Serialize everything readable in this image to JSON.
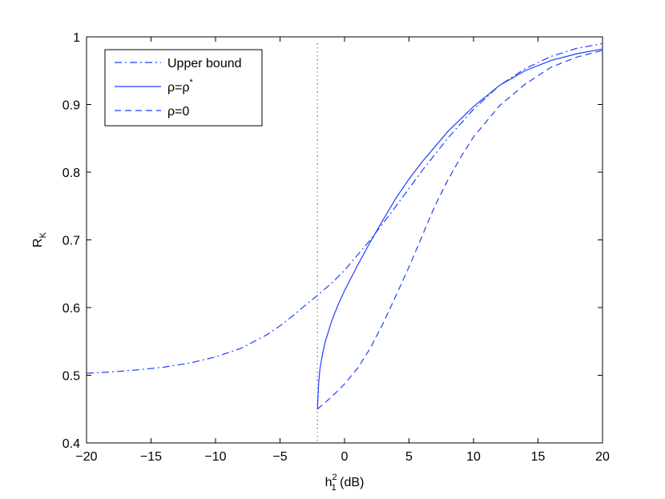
{
  "chart_data": {
    "type": "line",
    "xlabel": "h",
    "xlabel_sup": "2",
    "xlabel_sub": "1",
    "xlabel_suffix": " (dB)",
    "ylabel": "R",
    "ylabel_sub": "K",
    "xlim": [
      -20,
      20
    ],
    "ylim": [
      0.4,
      1.0
    ],
    "xticks": [
      -20,
      -15,
      -10,
      -5,
      0,
      5,
      10,
      15,
      20
    ],
    "xtick_labels": [
      "−20",
      "−15",
      "−10",
      "−5",
      "0",
      "5",
      "10",
      "15",
      "20"
    ],
    "yticks": [
      0.4,
      0.5,
      0.6,
      0.7,
      0.8,
      0.9,
      1.0
    ],
    "ytick_labels": [
      "0.4",
      "0.5",
      "0.6",
      "0.7",
      "0.8",
      "0.9",
      "1"
    ],
    "grid": false,
    "legend_position": "top-left",
    "vline": {
      "x": -2.1
    },
    "series": [
      {
        "name": "Upper bound",
        "style": "dashdot",
        "color": "#1f3fff",
        "x": [
          -20,
          -18,
          -16,
          -14,
          -12,
          -10,
          -8,
          -6,
          -5,
          -4,
          -3,
          -2.1,
          -1,
          0,
          2,
          4,
          6,
          8,
          10,
          12,
          14,
          16,
          18,
          20
        ],
        "y": [
          0.503,
          0.505,
          0.508,
          0.512,
          0.518,
          0.527,
          0.54,
          0.56,
          0.573,
          0.588,
          0.604,
          0.618,
          0.636,
          0.655,
          0.7,
          0.75,
          0.802,
          0.85,
          0.893,
          0.928,
          0.953,
          0.971,
          0.983,
          0.99
        ]
      },
      {
        "name": "ρ=ρ",
        "name_sup": "*",
        "style": "solid",
        "color": "#1f3fff",
        "x": [
          -2.1,
          -2.05,
          -2.0,
          -1.9,
          -1.7,
          -1.5,
          -1.0,
          -0.5,
          0,
          1,
          2,
          3,
          4,
          5,
          6,
          8,
          10,
          12,
          14,
          16,
          18,
          20
        ],
        "y": [
          0.45,
          0.47,
          0.49,
          0.51,
          0.532,
          0.549,
          0.58,
          0.604,
          0.625,
          0.662,
          0.697,
          0.73,
          0.762,
          0.79,
          0.815,
          0.86,
          0.897,
          0.928,
          0.95,
          0.965,
          0.975,
          0.982
        ]
      },
      {
        "name": "ρ=0",
        "style": "dashed",
        "color": "#1f3fff",
        "x": [
          -2.1,
          -1,
          0,
          1,
          2,
          3,
          4,
          5,
          6,
          7,
          8,
          9,
          10,
          12,
          14,
          16,
          18,
          20
        ],
        "y": [
          0.45,
          0.468,
          0.487,
          0.51,
          0.54,
          0.577,
          0.618,
          0.66,
          0.705,
          0.75,
          0.788,
          0.822,
          0.852,
          0.898,
          0.93,
          0.955,
          0.97,
          0.98
        ]
      }
    ]
  }
}
